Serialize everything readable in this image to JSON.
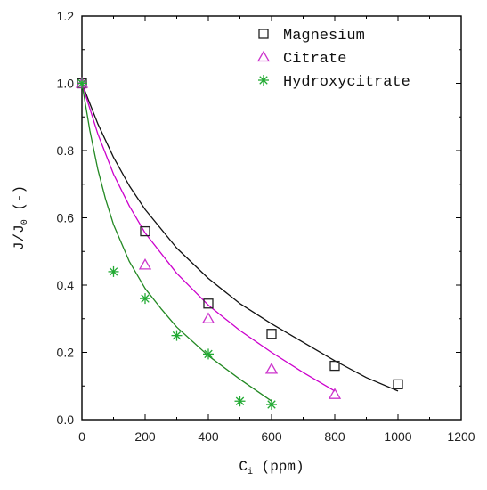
{
  "chart_data": {
    "type": "scatter",
    "title": "",
    "xlabel": {
      "main": "C",
      "sub": "i",
      "rest": " (ppm)"
    },
    "ylabel": {
      "main": "J/J",
      "sub": "0",
      "rest": " (-)"
    },
    "xlim": [
      0,
      1200
    ],
    "ylim": [
      0,
      1.2
    ],
    "xticks": [
      0,
      200,
      400,
      600,
      800,
      1000,
      1200
    ],
    "yticks": [
      0.0,
      0.2,
      0.4,
      0.6,
      0.8,
      1.0,
      1.2
    ],
    "xtick_labels": [
      "0",
      "200",
      "400",
      "600",
      "800",
      "1000",
      "1200"
    ],
    "ytick_labels": [
      "0.0",
      "0.2",
      "0.4",
      "0.6",
      "0.8",
      "1.0",
      "1.2"
    ],
    "grid": false,
    "legend_position": "top-right",
    "series": [
      {
        "name": "Magnesium",
        "marker": "square",
        "point_color": "#222222",
        "fit_color": "#111111",
        "points": [
          [
            0,
            1.0
          ],
          [
            200,
            0.56
          ],
          [
            400,
            0.345
          ],
          [
            600,
            0.255
          ],
          [
            800,
            0.16
          ],
          [
            1000,
            0.105
          ]
        ],
        "fit": [
          [
            0,
            1.0
          ],
          [
            50,
            0.88
          ],
          [
            100,
            0.78
          ],
          [
            150,
            0.695
          ],
          [
            200,
            0.625
          ],
          [
            300,
            0.51
          ],
          [
            400,
            0.42
          ],
          [
            500,
            0.345
          ],
          [
            600,
            0.285
          ],
          [
            700,
            0.23
          ],
          [
            800,
            0.175
          ],
          [
            900,
            0.125
          ],
          [
            1000,
            0.085
          ]
        ]
      },
      {
        "name": "Citrate",
        "marker": "triangle",
        "point_color": "#cc33cc",
        "fit_color": "#cc00cc",
        "points": [
          [
            0,
            1.0
          ],
          [
            200,
            0.46
          ],
          [
            400,
            0.3
          ],
          [
            600,
            0.15
          ],
          [
            800,
            0.075
          ]
        ],
        "fit": [
          [
            0,
            1.0
          ],
          [
            50,
            0.85
          ],
          [
            100,
            0.73
          ],
          [
            150,
            0.635
          ],
          [
            200,
            0.555
          ],
          [
            300,
            0.435
          ],
          [
            400,
            0.34
          ],
          [
            500,
            0.265
          ],
          [
            600,
            0.2
          ],
          [
            700,
            0.14
          ],
          [
            800,
            0.085
          ]
        ]
      },
      {
        "name": "Hydroxycitrate",
        "marker": "asterisk",
        "point_color": "#22aa33",
        "fit_color": "#228822",
        "points": [
          [
            0,
            1.0
          ],
          [
            100,
            0.44
          ],
          [
            200,
            0.36
          ],
          [
            300,
            0.25
          ],
          [
            400,
            0.195
          ],
          [
            500,
            0.055
          ],
          [
            600,
            0.045
          ]
        ],
        "fit": [
          [
            0,
            1.0
          ],
          [
            25,
            0.86
          ],
          [
            50,
            0.745
          ],
          [
            75,
            0.655
          ],
          [
            100,
            0.58
          ],
          [
            150,
            0.47
          ],
          [
            200,
            0.39
          ],
          [
            250,
            0.33
          ],
          [
            300,
            0.275
          ],
          [
            400,
            0.19
          ],
          [
            500,
            0.12
          ],
          [
            600,
            0.055
          ]
        ]
      }
    ]
  }
}
